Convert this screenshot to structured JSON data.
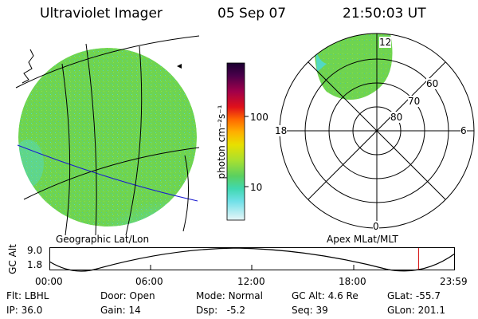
{
  "header": {
    "instrument": "Ultraviolet Imager",
    "date": "05 Sep 07",
    "time": "21:50:03 UT"
  },
  "colorbar": {
    "unit_label": "photon cm⁻²s⁻¹",
    "ticks": [
      "100",
      "10"
    ],
    "scale": "log"
  },
  "panels": {
    "geo_label": "Geographic Lat/Lon",
    "polar_label": "Apex MLat/MLT",
    "polar_mlt": {
      "top": "12",
      "bottom": "0",
      "left": "18",
      "right": "6"
    },
    "polar_mlat": [
      "60",
      "70",
      "80"
    ]
  },
  "altitude_plot": {
    "ylabel": "GC Alt",
    "ymax": "9.0",
    "ymin": "1.8",
    "xticks": [
      "00:00",
      "06:00",
      "12:00",
      "18:00",
      "23:59"
    ],
    "current_marker_fraction": 0.912
  },
  "status": {
    "filter": {
      "label": "Flt:",
      "value": "LBHL"
    },
    "ip": {
      "label": "IP:",
      "value": "36.0"
    },
    "door": {
      "label": "Door:",
      "value": "Open"
    },
    "gain": {
      "label": "Gain:",
      "value": "14"
    },
    "mode": {
      "label": "Mode:",
      "value": "Normal"
    },
    "dsp": {
      "label": "Dsp:",
      "value": "-5.2"
    },
    "gcalt": {
      "label": "GC Alt:",
      "value": "4.6 Re"
    },
    "seq": {
      "label": "Seq:",
      "value": "39"
    },
    "glat": {
      "label": "GLat:",
      "value": "-55.7"
    },
    "glon": {
      "label": "GLon:",
      "value": "201.1"
    }
  },
  "colors": {
    "disk_base": "#6fd44f",
    "disk_cyan": "#52d8c4",
    "disk_pale": "#c8eef0",
    "grid_black": "#000000",
    "grid_blue": "#1a1ad0",
    "marker_red": "#d40000"
  }
}
